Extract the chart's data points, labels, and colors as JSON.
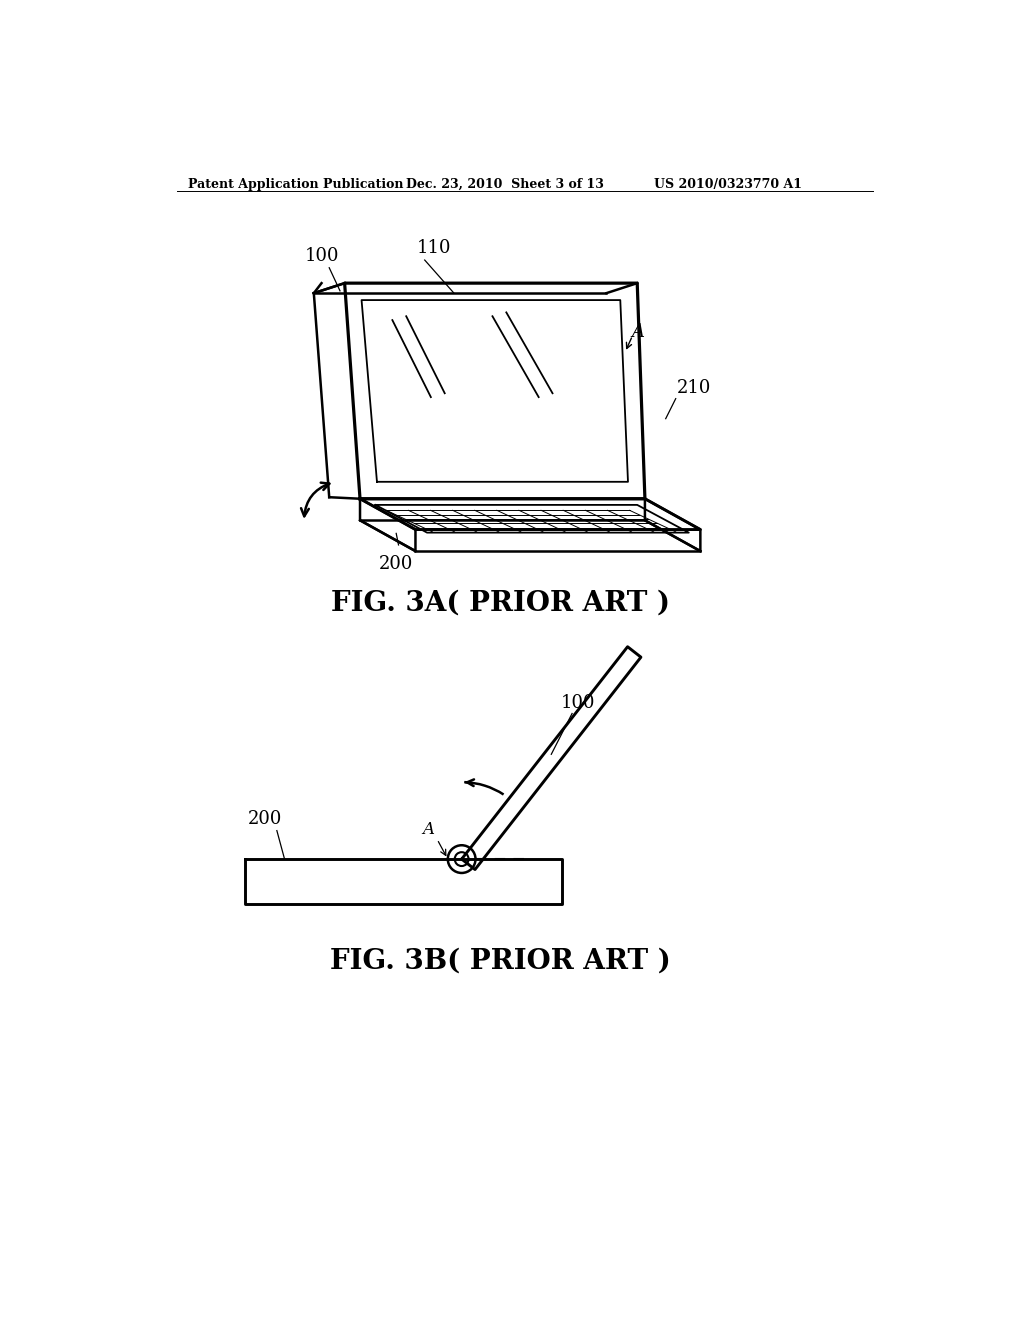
{
  "bg_color": "#ffffff",
  "header_left": "Patent Application Publication",
  "header_mid": "Dec. 23, 2010  Sheet 3 of 13",
  "header_right": "US 2010/0323770 A1",
  "fig3a_caption": "FIG. 3A( PRIOR ART )",
  "fig3b_caption": "FIG. 3B( PRIOR ART )",
  "line_color": "#000000",
  "lw": 1.8
}
